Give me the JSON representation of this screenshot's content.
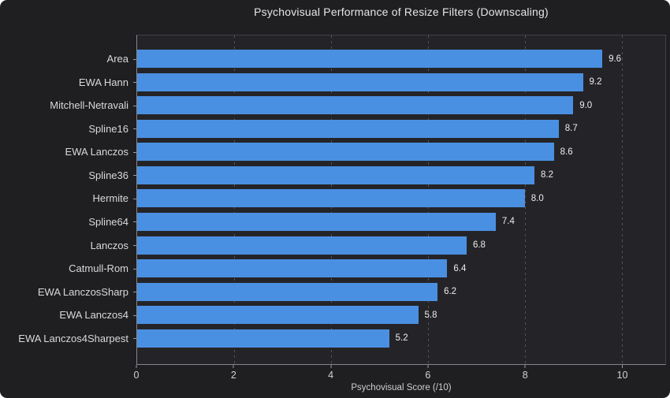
{
  "chart_data": {
    "type": "bar",
    "orientation": "horizontal",
    "title": "Psychovisual Performance of Resize Filters (Downscaling)",
    "xlabel": "Psychovisual Score (/10)",
    "ylabel": "",
    "categories": [
      "Area",
      "EWA Hann",
      "Mitchell-Netravali",
      "Spline16",
      "EWA Lanczos",
      "Spline36",
      "Hermite",
      "Spline64",
      "Lanczos",
      "Catmull-Rom",
      "EWA LanczosSharp",
      "EWA Lanczos4",
      "EWA Lanczos4Sharpest"
    ],
    "values": [
      9.6,
      9.2,
      9.0,
      8.7,
      8.6,
      8.2,
      8.0,
      7.4,
      6.8,
      6.4,
      6.2,
      5.8,
      5.2
    ],
    "value_labels": [
      "9.6",
      "9.2",
      "9.0",
      "8.7",
      "8.6",
      "8.2",
      "8.0",
      "7.4",
      "6.8",
      "6.4",
      "6.2",
      "5.8",
      "5.2"
    ],
    "xticks": [
      0,
      2,
      4,
      6,
      8,
      10
    ],
    "xlim": [
      0,
      10.9
    ],
    "grid": "vertical-dashed",
    "legend": "none",
    "colors": {
      "bar": "#4a90e2",
      "figure_background": "#1f1f22",
      "plot_background": "#242428",
      "text": "#d9d9d9",
      "grid": "#515157",
      "axis": "#85868a"
    }
  }
}
